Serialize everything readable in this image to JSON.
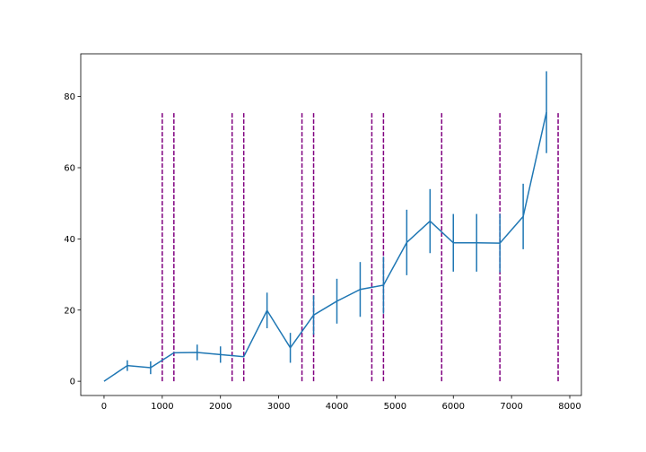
{
  "chart_data": {
    "type": "line",
    "title": "",
    "xlabel": "",
    "ylabel": "",
    "xlim": [
      -400,
      8200
    ],
    "ylim": [
      -4,
      92
    ],
    "grid": false,
    "x_ticks": [
      0,
      1000,
      2000,
      3000,
      4000,
      5000,
      6000,
      7000,
      8000
    ],
    "y_ticks": [
      0,
      20,
      40,
      60,
      80
    ],
    "x_tick_labels": [
      "0",
      "1000",
      "2000",
      "3000",
      "4000",
      "5000",
      "6000",
      "7000",
      "8000"
    ],
    "y_tick_labels": [
      "0",
      "20",
      "40",
      "60",
      "80"
    ],
    "series": [
      {
        "color": "#1f77b4",
        "x": [
          0,
          400,
          800,
          1200,
          1600,
          2000,
          2400,
          2800,
          3200,
          3600,
          4000,
          4400,
          4800,
          5200,
          5600,
          6000,
          6400,
          6800,
          7200,
          7600
        ],
        "y": [
          0,
          4.4,
          3.8,
          8.0,
          8.1,
          7.5,
          6.9,
          19.9,
          9.4,
          18.6,
          22.5,
          25.8,
          27.0,
          39.0,
          45.0,
          38.9,
          38.9,
          38.8,
          46.3,
          75.6
        ],
        "yerr": [
          0,
          1.5,
          1.8,
          0,
          2.2,
          2.3,
          0,
          5.0,
          4.2,
          5.5,
          6.3,
          7.7,
          8.0,
          9.2,
          9.0,
          8.1,
          8.1,
          8.2,
          9.2,
          11.5
        ]
      }
    ],
    "vlines": {
      "color": "#800080",
      "style": "dashed",
      "ymin": 0,
      "ymax": 75.5,
      "x": [
        1000,
        1200,
        2200,
        2400,
        3400,
        3600,
        4600,
        4800,
        5800,
        6800,
        7800
      ]
    }
  }
}
